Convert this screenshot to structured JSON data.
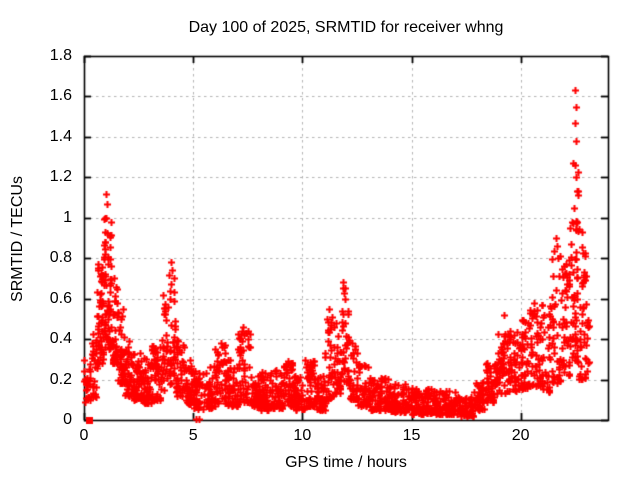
{
  "window": {
    "background_color": "#ffffff"
  },
  "chart_data": {
    "type": "scatter",
    "title": "Day 100 of 2025, SRMTID for receiver whng",
    "xlabel": "GPS time / hours",
    "ylabel": "SRMTID / TECUs",
    "xlim": [
      0,
      24
    ],
    "ylim": [
      0,
      1.8
    ],
    "xticks": [
      0,
      5,
      10,
      15,
      20
    ],
    "xtick_labels": [
      "0",
      "5",
      "10",
      "15",
      "20"
    ],
    "yticks": [
      0,
      0.2,
      0.4,
      0.6,
      0.8,
      1.0,
      1.2,
      1.4,
      1.6,
      1.8
    ],
    "ytick_labels": [
      "0",
      "0.2",
      "0.4",
      "0.6",
      "0.8",
      "1",
      "1.2",
      "1.4",
      "1.6",
      "1.8"
    ],
    "grid": true,
    "legend": "none",
    "marker": "plus",
    "marker_color": "#ff0000",
    "grid_color": "#b4b4b4",
    "axis_color": "#000000",
    "series_bands_format": [
      "t_start_hours",
      "t_end_hours",
      "n_points",
      "y_min_tecu",
      "y_max_tecu"
    ],
    "series_bands": [
      [
        0.0,
        0.3,
        18,
        0.08,
        0.3
      ],
      [
        0.05,
        0.15,
        6,
        0.15,
        0.28
      ],
      [
        0.3,
        0.6,
        24,
        0.1,
        0.5
      ],
      [
        0.6,
        0.9,
        50,
        0.28,
        0.8
      ],
      [
        0.9,
        1.25,
        60,
        0.35,
        1.0
      ],
      [
        1.25,
        1.55,
        40,
        0.28,
        0.72
      ],
      [
        1.55,
        1.85,
        36,
        0.18,
        0.55
      ],
      [
        1.85,
        2.2,
        40,
        0.12,
        0.42
      ],
      [
        2.2,
        2.6,
        42,
        0.1,
        0.35
      ],
      [
        2.6,
        3.1,
        48,
        0.08,
        0.33
      ],
      [
        3.1,
        3.5,
        44,
        0.1,
        0.38
      ],
      [
        3.5,
        3.8,
        26,
        0.15,
        0.6
      ],
      [
        3.8,
        4.2,
        40,
        0.18,
        0.76
      ],
      [
        4.2,
        4.6,
        36,
        0.12,
        0.42
      ],
      [
        4.6,
        5.0,
        40,
        0.08,
        0.3
      ],
      [
        5.0,
        5.5,
        42,
        0.05,
        0.26
      ],
      [
        5.5,
        6.0,
        42,
        0.06,
        0.28
      ],
      [
        6.0,
        6.55,
        46,
        0.08,
        0.38
      ],
      [
        6.55,
        7.05,
        44,
        0.07,
        0.3
      ],
      [
        7.05,
        7.6,
        46,
        0.09,
        0.44
      ],
      [
        7.6,
        8.1,
        44,
        0.06,
        0.26
      ],
      [
        8.1,
        8.6,
        46,
        0.05,
        0.24
      ],
      [
        8.6,
        9.1,
        46,
        0.06,
        0.26
      ],
      [
        9.1,
        9.6,
        46,
        0.07,
        0.29
      ],
      [
        9.6,
        10.1,
        46,
        0.05,
        0.23
      ],
      [
        10.1,
        10.6,
        46,
        0.07,
        0.3
      ],
      [
        10.6,
        11.05,
        44,
        0.05,
        0.26
      ],
      [
        11.05,
        11.45,
        36,
        0.1,
        0.52
      ],
      [
        11.45,
        11.75,
        30,
        0.13,
        0.48
      ],
      [
        11.75,
        12.15,
        34,
        0.18,
        0.66
      ],
      [
        12.15,
        12.55,
        34,
        0.1,
        0.42
      ],
      [
        12.55,
        13.05,
        44,
        0.07,
        0.28
      ],
      [
        13.05,
        14.0,
        78,
        0.05,
        0.21
      ],
      [
        14.0,
        15.0,
        80,
        0.04,
        0.18
      ],
      [
        15.0,
        16.0,
        80,
        0.03,
        0.16
      ],
      [
        16.0,
        17.0,
        80,
        0.03,
        0.15
      ],
      [
        17.0,
        17.85,
        62,
        0.02,
        0.12
      ],
      [
        17.85,
        18.35,
        40,
        0.05,
        0.19
      ],
      [
        18.35,
        18.85,
        42,
        0.09,
        0.3
      ],
      [
        18.85,
        19.35,
        44,
        0.13,
        0.43
      ],
      [
        19.35,
        19.85,
        44,
        0.14,
        0.46
      ],
      [
        19.85,
        20.35,
        44,
        0.15,
        0.5
      ],
      [
        20.35,
        20.85,
        40,
        0.17,
        0.55
      ],
      [
        20.85,
        21.35,
        40,
        0.14,
        0.58
      ],
      [
        21.35,
        21.85,
        40,
        0.18,
        0.88
      ],
      [
        21.85,
        22.25,
        40,
        0.22,
        0.8
      ],
      [
        22.25,
        22.65,
        52,
        0.28,
        1.3
      ],
      [
        22.65,
        23.0,
        38,
        0.2,
        0.95
      ],
      [
        23.0,
        23.15,
        10,
        0.22,
        0.5
      ]
    ],
    "notable_points": [
      [
        1.02,
        1.12
      ],
      [
        1.05,
        1.07
      ],
      [
        1.0,
        1.0
      ],
      [
        0.95,
        0.93
      ],
      [
        0.98,
        0.88
      ],
      [
        3.6,
        0.62
      ],
      [
        4.0,
        0.78
      ],
      [
        4.05,
        0.74
      ],
      [
        4.1,
        0.7
      ],
      [
        5.15,
        0.005
      ],
      [
        5.25,
        0.005
      ],
      [
        6.45,
        0.37
      ],
      [
        7.3,
        0.46
      ],
      [
        7.35,
        0.42
      ],
      [
        11.2,
        0.55
      ],
      [
        11.85,
        0.68
      ],
      [
        11.9,
        0.63
      ],
      [
        11.95,
        0.6
      ],
      [
        19.25,
        0.52
      ],
      [
        20.6,
        0.58
      ],
      [
        21.6,
        0.9
      ],
      [
        21.65,
        0.86
      ],
      [
        21.7,
        0.8
      ],
      [
        22.5,
        1.63
      ],
      [
        22.52,
        1.55
      ],
      [
        22.48,
        1.47
      ],
      [
        22.55,
        1.38
      ],
      [
        22.5,
        1.26
      ],
      [
        22.53,
        1.2
      ],
      [
        22.6,
        1.13
      ],
      [
        22.45,
        1.05
      ],
      [
        22.58,
        0.98
      ]
    ],
    "square_point": [
      0.23,
      0.0
    ]
  }
}
